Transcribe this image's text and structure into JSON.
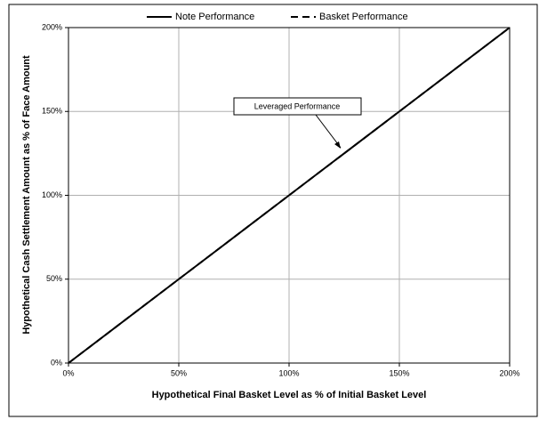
{
  "chart_data": {
    "type": "line",
    "x_label": "Hypothetical Final Basket Level as % of Initial Basket Level",
    "y_label": "Hypothetical Cash Settlement Amount as % of Face Amount",
    "x": [
      0,
      50,
      100,
      150,
      200
    ],
    "series": [
      {
        "name": "Note Performance",
        "color": "#000000",
        "dash": "solid",
        "values": [
          0,
          50,
          100,
          150,
          200
        ]
      },
      {
        "name": "Basket Performance",
        "color": "#000000",
        "dash": "dashed",
        "values": [
          0,
          50,
          100,
          150,
          200
        ]
      }
    ],
    "xlim": [
      0,
      200
    ],
    "ylim": [
      0,
      200
    ],
    "xticks": [
      {
        "value": 0,
        "label": "0%"
      },
      {
        "value": 50,
        "label": "50%"
      },
      {
        "value": 100,
        "label": "100%"
      },
      {
        "value": 150,
        "label": "150%"
      },
      {
        "value": 200,
        "label": "200%"
      }
    ],
    "yticks": [
      {
        "value": 0,
        "label": "0%"
      },
      {
        "value": 50,
        "label": "50%"
      },
      {
        "value": 100,
        "label": "100%"
      },
      {
        "value": 150,
        "label": "150%"
      },
      {
        "value": 200,
        "label": "200%"
      }
    ],
    "grid": true,
    "legend": "top",
    "annotations": [
      {
        "text": "Leveraged Performance"
      }
    ]
  }
}
